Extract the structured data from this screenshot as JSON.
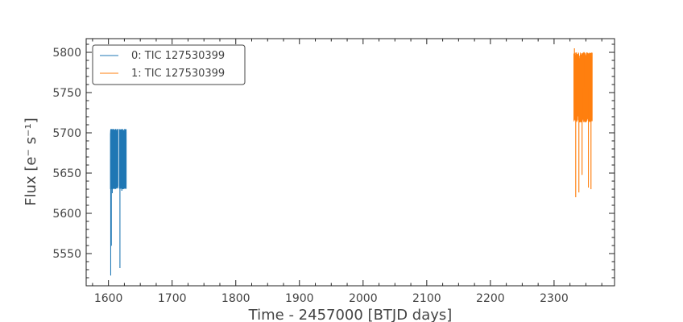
{
  "chart_data": {
    "type": "line",
    "xlabel": "Time - 2457000 [BTJD days]",
    "ylabel": "Flux [e⁻ s⁻¹]",
    "xlim": [
      1565,
      2395
    ],
    "ylim": [
      5510,
      5817
    ],
    "x_ticks": [
      1600,
      1700,
      1800,
      1900,
      2000,
      2100,
      2200,
      2300
    ],
    "y_ticks": [
      5550,
      5600,
      5650,
      5700,
      5750,
      5800
    ],
    "grid": false,
    "legend_position": "top-left",
    "series": [
      {
        "name": "0: TIC 127530399",
        "color": "#1f77b4",
        "segments": [
          [
            1603,
            1615
          ],
          [
            1617,
            1628
          ]
        ],
        "band": [
          5630,
          5705
        ],
        "spikes": [
          [
            1603.5,
            5523
          ],
          [
            1604.5,
            5560
          ],
          [
            1618,
            5532
          ],
          [
            1606,
            5625
          ],
          [
            1621,
            5628
          ]
        ]
      },
      {
        "name": "1: TIC 127530399",
        "color": "#ff7f0e",
        "segments": [
          [
            2331,
            2360
          ]
        ],
        "band": [
          5713,
          5800
        ],
        "spikes": [
          [
            2334,
            5620
          ],
          [
            2339,
            5626
          ],
          [
            2344,
            5648
          ],
          [
            2354,
            5632
          ],
          [
            2358,
            5630
          ],
          [
            2332,
            5805
          ],
          [
            2347,
            5800
          ]
        ]
      }
    ]
  }
}
